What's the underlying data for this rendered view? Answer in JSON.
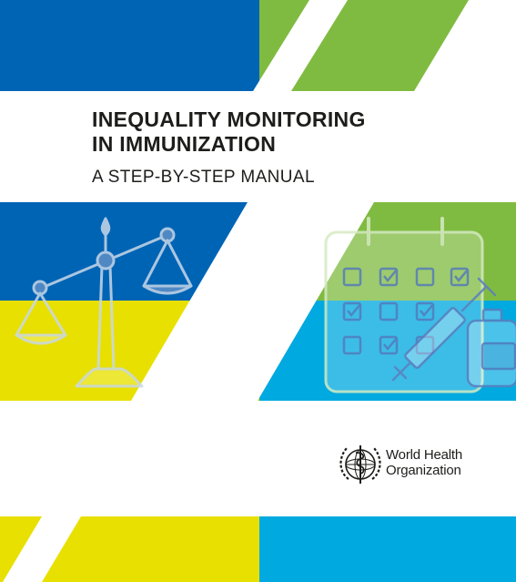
{
  "cover": {
    "title_line1": "INEQUALITY MONITORING",
    "title_line2": "IN IMMUNIZATION",
    "subtitle": "A STEP-BY-STEP MANUAL"
  },
  "publisher": {
    "name_line1": "World Health",
    "name_line2": "Organization",
    "logo": "who-emblem-icon"
  },
  "illustrations": [
    "balance-scale-icon",
    "calendar-icon",
    "syringe-icon",
    "vaccine-vial-icon"
  ],
  "colors": {
    "blue": "#0064b5",
    "green": "#80bb41",
    "yellow": "#e8e000",
    "cyan": "#00a9e0",
    "white": "#ffffff",
    "text": "#1d1d1b"
  }
}
